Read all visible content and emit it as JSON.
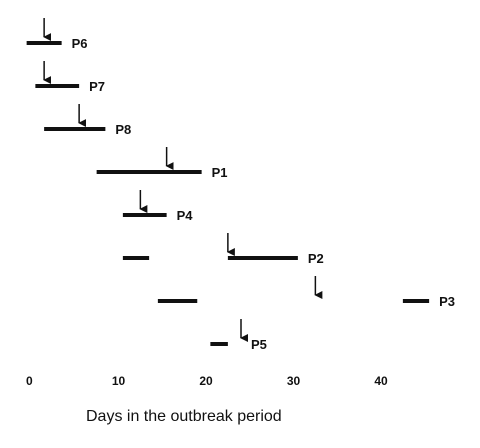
{
  "chart_data": {
    "type": "timeline",
    "xlabel": "Days in the outbreak period",
    "xlim": [
      0,
      50
    ],
    "xticks": [
      0,
      10,
      20,
      30,
      40
    ],
    "grid": false,
    "rows": [
      {
        "label": "P6",
        "segments": [
          [
            -0.5,
            3.5
          ]
        ],
        "arrow": 1.5
      },
      {
        "label": "P7",
        "segments": [
          [
            0.5,
            5.5
          ]
        ],
        "arrow": 1.5
      },
      {
        "label": "P8",
        "segments": [
          [
            1.5,
            8.5
          ]
        ],
        "arrow": 5.5
      },
      {
        "label": "P1",
        "segments": [
          [
            7.5,
            19.5
          ]
        ],
        "arrow": 15.5
      },
      {
        "label": "P4",
        "segments": [
          [
            10.5,
            15.5
          ]
        ],
        "arrow": 12.5
      },
      {
        "label": "P2",
        "segments": [
          [
            10.5,
            13.5
          ],
          [
            22.5,
            30.5
          ]
        ],
        "arrow": 22.5
      },
      {
        "label": "P3",
        "segments": [
          [
            14.5,
            19.0
          ],
          [
            42.5,
            45.5
          ]
        ],
        "arrow": 32.5
      },
      {
        "label": "P5",
        "segments": [
          [
            20.5,
            22.5
          ]
        ],
        "arrow": 24.0
      }
    ]
  }
}
